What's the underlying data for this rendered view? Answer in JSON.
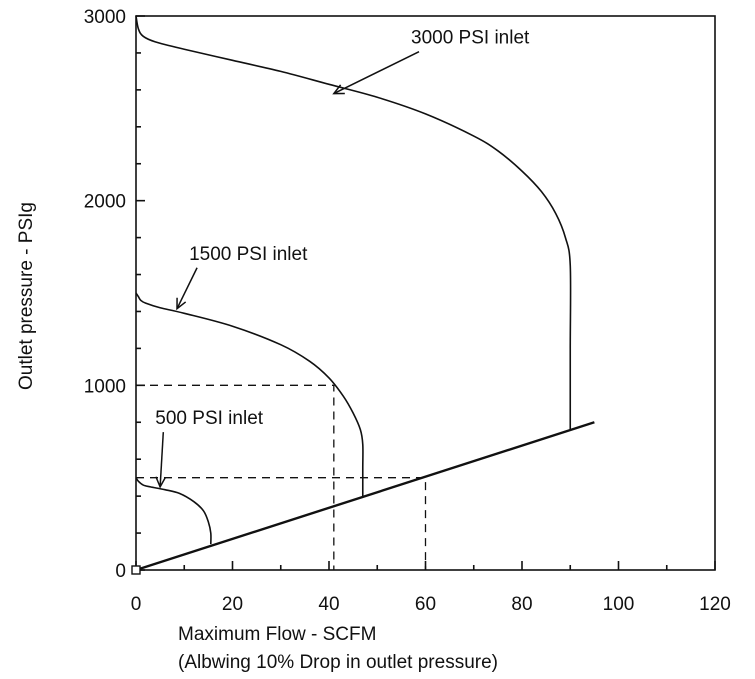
{
  "chart_data": {
    "type": "line",
    "title": "",
    "xlabel": "Maximum Flow - SCFM",
    "xlabel_note": "(Albwing 10% Drop in outlet pressure)",
    "ylabel": "Outlet pressure - PSIg",
    "xlim": [
      0,
      120
    ],
    "ylim": [
      0,
      3000
    ],
    "x_ticks": [
      "0",
      "20",
      "40",
      "60",
      "80",
      "100",
      "120"
    ],
    "y_ticks": [
      "0",
      "1000",
      "2000",
      "3000"
    ],
    "grid": false,
    "legend": "none",
    "series": [
      {
        "name": "3000 PSI inlet",
        "x": [
          0,
          0.5,
          1.5,
          4,
          10,
          20,
          30,
          40,
          50,
          60,
          70,
          75,
          80,
          84,
          87,
          89,
          90,
          90,
          90
        ],
        "y": [
          3000,
          2930,
          2890,
          2860,
          2820,
          2760,
          2700,
          2630,
          2560,
          2470,
          2350,
          2270,
          2160,
          2050,
          1930,
          1800,
          1650,
          1200,
          760
        ]
      },
      {
        "name": "1500 PSI inlet",
        "x": [
          0,
          0.5,
          1,
          2,
          5,
          10,
          20,
          30,
          36,
          40,
          43,
          45,
          46.5,
          47,
          47,
          47
        ],
        "y": [
          1500,
          1480,
          1460,
          1445,
          1420,
          1390,
          1320,
          1220,
          1130,
          1040,
          940,
          850,
          760,
          680,
          550,
          400
        ]
      },
      {
        "name": "500 PSI inlet",
        "x": [
          0,
          0.5,
          1.5,
          3,
          6,
          9,
          12,
          14,
          15,
          15.5,
          15.5
        ],
        "y": [
          500,
          480,
          460,
          450,
          435,
          415,
          370,
          320,
          260,
          200,
          140
        ]
      },
      {
        "name": "",
        "x": [
          0,
          95
        ],
        "y": [
          0,
          800
        ]
      }
    ],
    "guides": [
      {
        "x": [
          0,
          41,
          41
        ],
        "y": [
          1000,
          1000,
          0
        ]
      },
      {
        "x": [
          0,
          60,
          60
        ],
        "y": [
          500,
          500,
          0
        ]
      }
    ],
    "annotations": [
      {
        "text": "3000 PSI inlet",
        "x": 57,
        "y": 2850,
        "point_x": 41,
        "point_y": 2580
      },
      {
        "text": "1500 PSI inlet",
        "x": 11,
        "y": 1680,
        "point_x": 8.5,
        "point_y": 1415
      },
      {
        "text": "500 PSI inlet",
        "x": 4,
        "y": 790,
        "point_x": 5,
        "point_y": 450
      }
    ]
  }
}
